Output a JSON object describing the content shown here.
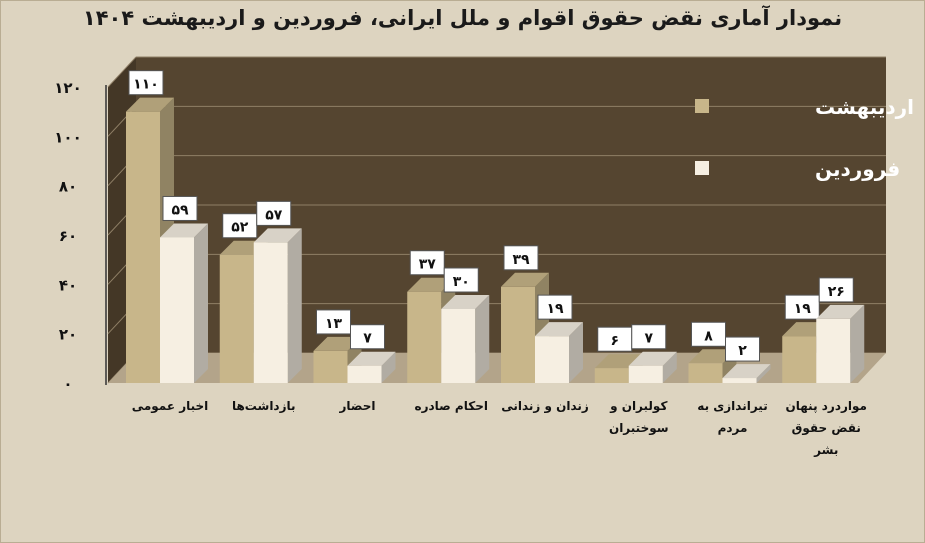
{
  "chart_data": {
    "type": "bar",
    "title": "نمودار آماری نقض حقوق اقوام و ملل ایرانی، فروردین و اردیبهشت ۱۴۰۴",
    "categories": [
      [
        "اخبار عمومی"
      ],
      [
        "بازداشت‌ها"
      ],
      [
        "احضار"
      ],
      [
        "احکام صادره"
      ],
      [
        "زندان و زندانی"
      ],
      [
        "کولبران و",
        "سوختبران"
      ],
      [
        "تیراندازی به",
        "مردم"
      ],
      [
        "مواردرد پنهان",
        "نقض حقوق",
        "بشر"
      ]
    ],
    "series": [
      {
        "name": "اردیبهشت",
        "color": "#c8b68a",
        "values": [
          110,
          52,
          13,
          37,
          39,
          6,
          8,
          19
        ],
        "labels": [
          "۱۱۰",
          "۵۲",
          "۱۳",
          "۳۷",
          "۳۹",
          "۶",
          "۸",
          "۱۹"
        ]
      },
      {
        "name": "فروردین",
        "color": "#f6efe2",
        "values": [
          59,
          57,
          7,
          30,
          19,
          7,
          2,
          26
        ],
        "labels": [
          "۵۹",
          "۵۷",
          "۷",
          "۳۰",
          "۱۹",
          "۷",
          "۲",
          "۲۶"
        ]
      }
    ],
    "ylim": [
      0,
      120
    ],
    "yticks": [
      0,
      20,
      40,
      60,
      80,
      100,
      120
    ],
    "ytick_labels": [
      "۰",
      "۲۰",
      "۴۰",
      "۶۰",
      "۸۰",
      "۱۰۰",
      "۱۲۰"
    ],
    "grid": true,
    "legend": "top-right",
    "colors": {
      "wall": "#554530",
      "floor": "#b3a48a",
      "grid": "#8f7f66"
    }
  }
}
